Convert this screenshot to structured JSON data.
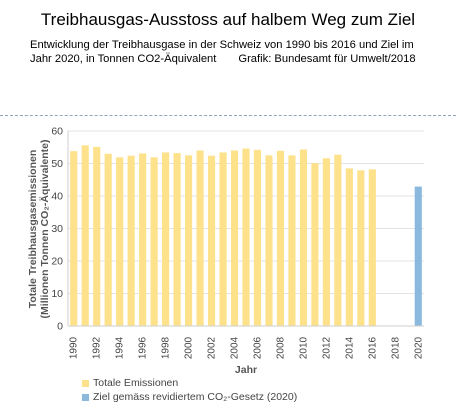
{
  "header": {
    "title": "Treibhausgas-Ausstoss  auf halbem Weg zum Ziel",
    "subtitle_line1": "Entwicklung der Treibhausgase  in der Schweiz von 1990 bis 2016 und Ziel im",
    "subtitle_line2": "Jahr 2020, in Tonnen CO2-Äquivalent",
    "credit": "Grafik: Bundesamt für Umwelt/2018"
  },
  "chart_data": {
    "type": "bar",
    "xlabel": "Jahr",
    "ylabel": "Totale Treibhausgasemissionen (Millionen Tonnen CO₂-Äquivalente)",
    "ylim": [
      0,
      60
    ],
    "yticks": [
      0,
      10,
      20,
      30,
      40,
      50,
      60
    ],
    "xrange": [
      1990,
      2020
    ],
    "xticks": [
      "1990",
      "1992",
      "1994",
      "1996",
      "1998",
      "2000",
      "2002",
      "2004",
      "2006",
      "2008",
      "2010",
      "2012",
      "2014",
      "2016",
      "2018",
      "2020"
    ],
    "grid": true,
    "legend_position": "bottom",
    "series": [
      {
        "name": "Totale Emissionen",
        "color": "#fde18b",
        "x": [
          1990,
          1991,
          1992,
          1993,
          1994,
          1995,
          1996,
          1997,
          1998,
          1999,
          2000,
          2001,
          2002,
          2003,
          2004,
          2005,
          2006,
          2007,
          2008,
          2009,
          2010,
          2011,
          2012,
          2013,
          2014,
          2015,
          2016
        ],
        "values": [
          53.8,
          55.6,
          55.1,
          53.0,
          51.9,
          52.4,
          53.1,
          51.9,
          53.4,
          53.2,
          52.5,
          54.0,
          52.4,
          53.4,
          54.0,
          54.6,
          54.2,
          52.5,
          53.9,
          52.5,
          54.3,
          50.1,
          51.6,
          52.7,
          48.5,
          47.9,
          48.2
        ]
      },
      {
        "name": "Ziel gemäss revidiertem CO₂-Gesetz (2020)",
        "color": "#8bb8de",
        "x": [
          2020
        ],
        "values": [
          42.9
        ]
      }
    ]
  }
}
